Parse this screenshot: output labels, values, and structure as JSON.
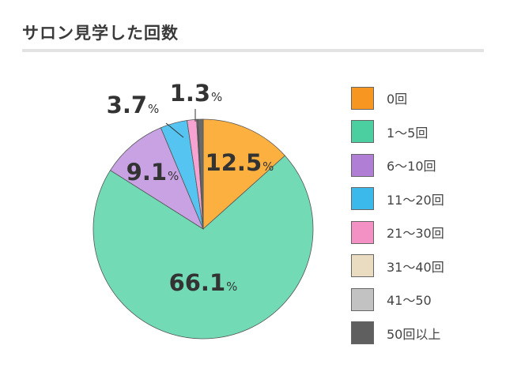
{
  "title": "サロン見学した回数",
  "chart_data": {
    "type": "pie",
    "title": "サロン見学した回数",
    "categories": [
      "0回",
      "1〜5回",
      "6〜10回",
      "11〜20回",
      "21〜30回",
      "31〜40回",
      "41〜50",
      "50回以上"
    ],
    "values": [
      12.5,
      66.1,
      9.1,
      3.7,
      1.3,
      0.1,
      0.1,
      0.7
    ],
    "unit": "%",
    "colors": [
      "#f79722",
      "#4ccfa0",
      "#b07ed4",
      "#3ab9ea",
      "#f391c5",
      "#e9dcc0",
      "#c2c2c2",
      "#5f5f5f"
    ],
    "slice_fills": [
      "#fbb040",
      "#72dbb6",
      "#c8a2e3",
      "#55c4f1",
      "#f7a3d1",
      "#ede2c8",
      "#cccccc",
      "#6a6a6a"
    ],
    "data_labels": [
      {
        "index": 0,
        "number": "12.5",
        "unit": "%"
      },
      {
        "index": 1,
        "number": "66.1",
        "unit": "%"
      },
      {
        "index": 2,
        "number": "9.1",
        "unit": "%"
      },
      {
        "index": 3,
        "number": "3.7",
        "unit": "%"
      },
      {
        "index": 4,
        "number": "1.3",
        "unit": "%"
      }
    ],
    "legend_position": "right",
    "start_angle": "top, clockwise"
  }
}
